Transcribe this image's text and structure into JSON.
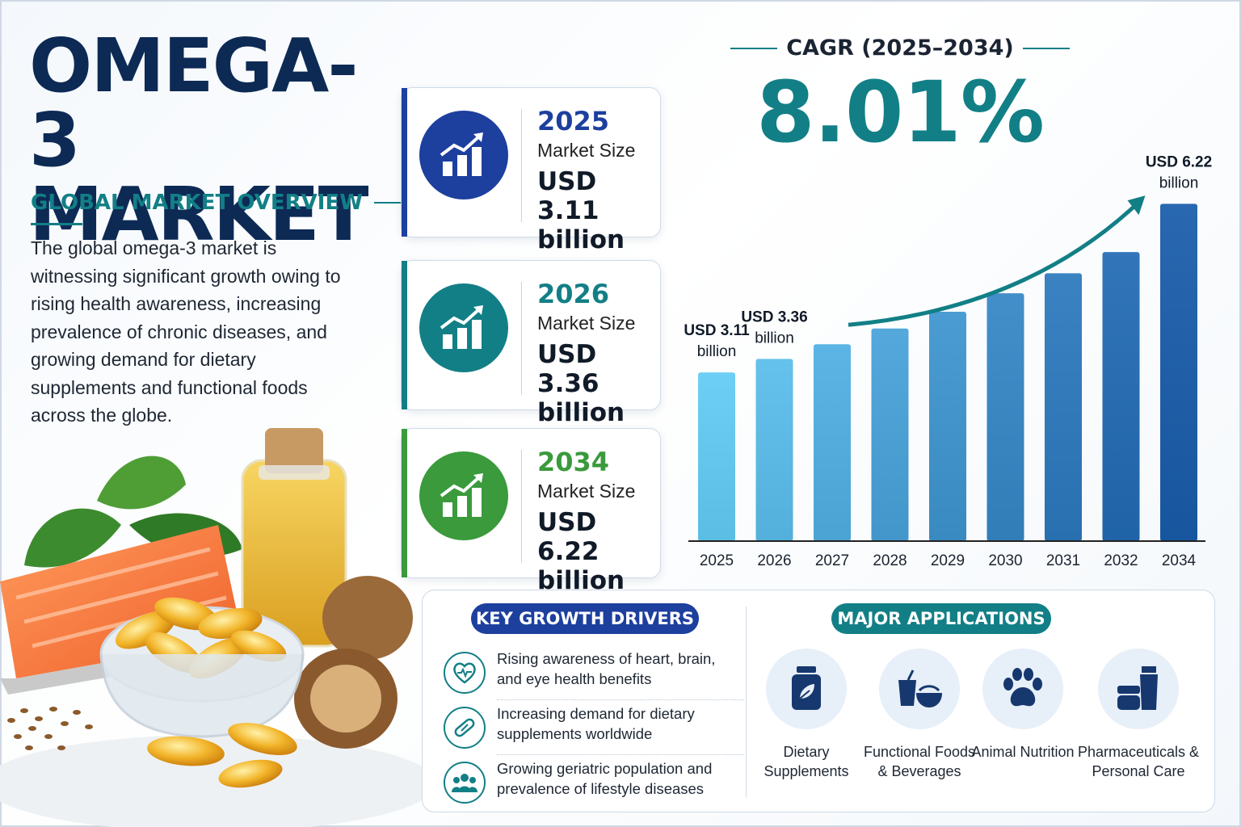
{
  "header": {
    "title_line1": "OMEGA-3",
    "title_line2": "MARKET",
    "subtitle": "GLOBAL MARKET OVERVIEW",
    "intro": "The global omega-3 market is witnessing significant growth owing to rising health awareness, increasing prevalence of chronic diseases, and growing demand for dietary supplements and functional foods across the globe."
  },
  "cards": [
    {
      "year": "2025",
      "label": "Market Size",
      "value": "USD 3.11 billion",
      "color": "#1d3f9e",
      "icon": "chart-growth-icon"
    },
    {
      "year": "2026",
      "label": "Market Size",
      "value": "USD 3.36 billion",
      "color": "#127f86",
      "icon": "chart-growth-icon"
    },
    {
      "year": "2034",
      "label": "Market Size",
      "value": "USD 6.22 billion",
      "color": "#3a9a3c",
      "icon": "chart-growth-icon"
    }
  ],
  "cagr": {
    "title": "CAGR (2025–2034)",
    "value": "8.01%"
  },
  "chart_data": {
    "type": "bar",
    "categories": [
      "2025",
      "2026",
      "2027",
      "2028",
      "2029",
      "2030",
      "2031",
      "2032",
      "2034"
    ],
    "values": [
      3.11,
      3.36,
      3.63,
      3.92,
      4.23,
      4.57,
      4.94,
      5.33,
      6.22
    ],
    "ylim": [
      0,
      7
    ],
    "annotations": [
      {
        "category": "2025",
        "line1": "USD 3.11",
        "line2": "billion"
      },
      {
        "category": "2026",
        "line1": "USD 3.36",
        "line2": "billion"
      },
      {
        "category": "2034",
        "line1": "USD 6.22",
        "line2": "billion"
      }
    ],
    "trend_arrow": true,
    "grid": false,
    "bar_color_start": "#5bbde3",
    "bar_color_end": "#17569e"
  },
  "drivers": {
    "title": "KEY GROWTH DRIVERS",
    "items": [
      {
        "text": "Rising awareness of heart, brain, and eye health benefits",
        "icon": "heart-pulse-icon"
      },
      {
        "text": "Increasing demand for dietary supplements worldwide",
        "icon": "capsule-icon"
      },
      {
        "text": "Growing geriatric population and prevalence of lifestyle diseases",
        "icon": "people-icon"
      }
    ]
  },
  "applications": {
    "title": "MAJOR APPLICATIONS",
    "items": [
      {
        "label": "Dietary Supplements",
        "icon": "supplement-bottle-icon"
      },
      {
        "label": "Functional Foods & Beverages",
        "icon": "cup-bowl-icon"
      },
      {
        "label": "Animal Nutrition",
        "icon": "paw-icon"
      },
      {
        "label": "Pharmaceuticals & Personal Care",
        "icon": "cosmetics-icon"
      }
    ]
  },
  "colors": {
    "navy": "#0d2a55",
    "teal": "#127f86",
    "blue": "#1d3f9e",
    "green": "#3a9a3c",
    "drivers_pill": "#1d3f9e",
    "applications_pill": "#127f86"
  }
}
